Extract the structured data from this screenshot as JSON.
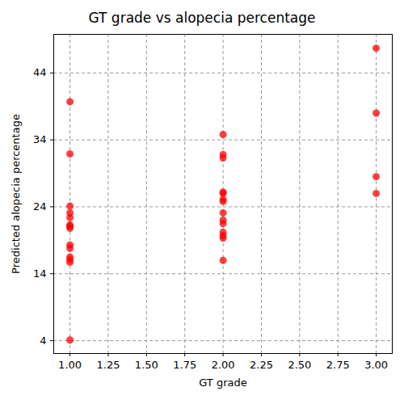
{
  "chart_data": {
    "type": "scatter",
    "title": "GT grade vs alopecia percentage",
    "x_label": "GT grade",
    "y_label": "Predicted alopecia percentage",
    "x": [
      1,
      1,
      1,
      1,
      1,
      1,
      1,
      1,
      1,
      1,
      1,
      1,
      1,
      1,
      2,
      2,
      2,
      2,
      2,
      2,
      2,
      2,
      2,
      2,
      2,
      2,
      2,
      2,
      3,
      3,
      3,
      3
    ],
    "values": [
      39.7,
      31.9,
      24.1,
      23.1,
      22.4,
      21.3,
      21.1,
      20.8,
      18.3,
      17.8,
      16.5,
      16.1,
      15.7,
      4.1,
      34.8,
      31.8,
      31.3,
      26.2,
      26.0,
      25.1,
      24.8,
      23.1,
      22.0,
      21.5,
      20.2,
      19.7,
      19.3,
      16.0,
      47.7,
      38.0,
      28.5,
      26.0
    ],
    "color": "red",
    "marker": "circle",
    "grid": true,
    "xlim": [
      0.894,
      3.105
    ],
    "xticks": [
      {
        "value": 1,
        "label": "1.00"
      },
      {
        "value": 1.25,
        "label": "1.25"
      },
      {
        "value": 1.5,
        "label": "1.50"
      },
      {
        "value": 1.75,
        "label": "1.75"
      },
      {
        "value": 2,
        "label": "2.00"
      },
      {
        "value": 2.25,
        "label": "2.25"
      },
      {
        "value": 2.5,
        "label": "2.50"
      },
      {
        "value": 2.75,
        "label": "2.75"
      },
      {
        "value": 3,
        "label": "3.00"
      }
    ],
    "ylim": [
      2.08,
      49.77
    ],
    "yticks": [
      4,
      14,
      24,
      34,
      44
    ]
  }
}
